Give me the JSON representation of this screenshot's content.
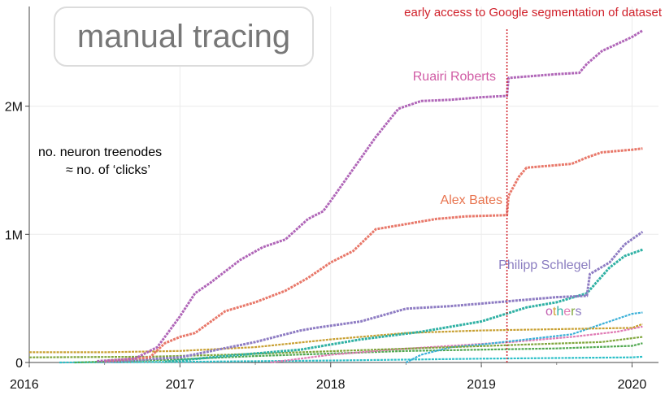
{
  "chart_data": {
    "type": "line",
    "title": "manual tracing",
    "xlabel": "",
    "ylabel": "no. neuron treenodes ≈ no. of ‘clicks’",
    "y_note_line1": "no. neuron treenodes",
    "y_note_line2": "≈ no. of ‘clicks’",
    "xlim": [
      2016.0,
      2020.1
    ],
    "ylim": [
      0,
      2600000
    ],
    "x_ticks": [
      {
        "value": 2016,
        "label": "2016"
      },
      {
        "value": 2017,
        "label": "2017"
      },
      {
        "value": 2018,
        "label": "2018"
      },
      {
        "value": 2019,
        "label": "2019"
      },
      {
        "value": 2020,
        "label": "2020"
      }
    ],
    "y_ticks": [
      {
        "value": 0,
        "label": "0"
      },
      {
        "value": 1000000,
        "label": "1M"
      },
      {
        "value": 2000000,
        "label": "2M"
      }
    ],
    "annotation": {
      "text": "early access to Google segmentation of dataset",
      "x": 2019.17,
      "color": "#d0202a"
    },
    "series": [
      {
        "name": "Ruairi Roberts",
        "color": "#b066b8",
        "label_color": "#d05aa4",
        "labeled": true,
        "x": [
          2016.45,
          2016.7,
          2016.85,
          2017.0,
          2017.1,
          2017.2,
          2017.4,
          2017.55,
          2017.7,
          2017.85,
          2017.95,
          2018.0,
          2018.15,
          2018.3,
          2018.45,
          2018.6,
          2018.8,
          2019.0,
          2019.17,
          2019.18,
          2019.5,
          2019.65,
          2019.7,
          2019.8,
          2020.0,
          2020.07
        ],
        "y": [
          10000,
          30000,
          120000,
          360000,
          540000,
          620000,
          800000,
          900000,
          960000,
          1120000,
          1180000,
          1260000,
          1510000,
          1760000,
          1980000,
          2040000,
          2050000,
          2070000,
          2080000,
          2220000,
          2250000,
          2260000,
          2330000,
          2430000,
          2540000,
          2590000
        ]
      },
      {
        "name": "Alex Bates",
        "color": "#e8786a",
        "label_color": "#e8744f",
        "labeled": true,
        "x": [
          2016.5,
          2016.8,
          2016.9,
          2017.0,
          2017.1,
          2017.3,
          2017.5,
          2017.7,
          2017.85,
          2018.0,
          2018.15,
          2018.3,
          2018.45,
          2018.7,
          2018.9,
          2019.17,
          2019.18,
          2019.25,
          2019.3,
          2019.5,
          2019.6,
          2019.7,
          2019.8,
          2020.0,
          2020.07
        ],
        "y": [
          10000,
          40000,
          150000,
          200000,
          230000,
          400000,
          470000,
          560000,
          660000,
          780000,
          870000,
          1040000,
          1070000,
          1120000,
          1140000,
          1150000,
          1300000,
          1450000,
          1520000,
          1540000,
          1550000,
          1600000,
          1640000,
          1660000,
          1670000
        ]
      },
      {
        "name": "Philipp Schlegel",
        "color": "#8e7cc3",
        "label_color": "#8a7cc0",
        "labeled": true,
        "x": [
          2016.5,
          2017.0,
          2017.5,
          2017.8,
          2017.9,
          2018.2,
          2018.5,
          2018.8,
          2019.0,
          2019.2,
          2019.5,
          2019.7,
          2019.72,
          2019.85,
          2019.95,
          2020.07
        ],
        "y": [
          5000,
          40000,
          160000,
          250000,
          270000,
          320000,
          420000,
          440000,
          460000,
          480000,
          510000,
          520000,
          690000,
          780000,
          920000,
          1020000
        ]
      },
      {
        "name": "others",
        "color": "#2fb1a4",
        "label_color": "#c25fb0",
        "labeled": true,
        "x": [
          2016.9,
          2017.3,
          2017.8,
          2018.2,
          2018.6,
          2019.0,
          2019.3,
          2019.5,
          2019.7,
          2019.85,
          2019.95,
          2020.07
        ],
        "y": [
          5000,
          50000,
          100000,
          180000,
          240000,
          320000,
          430000,
          470000,
          540000,
          740000,
          830000,
          880000
        ]
      },
      {
        "name": "others-2",
        "color": "#c8a032",
        "label_color": "#c8a032",
        "labeled": false,
        "x": [
          2016.0,
          2016.5,
          2017.0,
          2017.5,
          2018.0,
          2018.5,
          2019.0,
          2019.5,
          2020.0,
          2020.07
        ],
        "y": [
          80000,
          80000,
          90000,
          120000,
          180000,
          230000,
          250000,
          260000,
          270000,
          300000
        ]
      },
      {
        "name": "others-3",
        "color": "#7fa63c",
        "label_color": "#7fa63c",
        "labeled": false,
        "x": [
          2016.0,
          2016.8,
          2017.3,
          2017.8,
          2018.3,
          2018.8,
          2019.3,
          2019.8,
          2020.07
        ],
        "y": [
          40000,
          45000,
          60000,
          80000,
          100000,
          120000,
          140000,
          160000,
          200000
        ]
      },
      {
        "name": "others-4",
        "color": "#3bb0d8",
        "label_color": "#3bb0d8",
        "labeled": false,
        "x": [
          2018.5,
          2018.6,
          2018.8,
          2019.0,
          2019.3,
          2019.6,
          2019.8,
          2020.0,
          2020.07
        ],
        "y": [
          0,
          60000,
          120000,
          140000,
          180000,
          220000,
          300000,
          380000,
          390000
        ]
      },
      {
        "name": "others-5",
        "color": "#e07ab4",
        "label_color": "#e07ab4",
        "labeled": false,
        "x": [
          2017.6,
          2018.0,
          2018.4,
          2018.8,
          2019.2,
          2019.6,
          2019.9,
          2020.07
        ],
        "y": [
          0,
          60000,
          100000,
          130000,
          160000,
          200000,
          240000,
          280000
        ]
      },
      {
        "name": "others-6",
        "color": "#50a850",
        "label_color": "#50a850",
        "labeled": false,
        "x": [
          2016.3,
          2016.9,
          2017.5,
          2018.0,
          2018.5,
          2019.0,
          2019.5,
          2020.0,
          2020.07
        ],
        "y": [
          0,
          20000,
          50000,
          70000,
          90000,
          100000,
          110000,
          130000,
          150000
        ]
      },
      {
        "name": "others-7",
        "color": "#2cc0c8",
        "label_color": "#2cc0c8",
        "labeled": false,
        "x": [
          2016.2,
          2017.0,
          2018.0,
          2019.0,
          2019.5,
          2020.0,
          2020.07
        ],
        "y": [
          0,
          5000,
          15000,
          30000,
          35000,
          40000,
          45000
        ]
      }
    ]
  }
}
